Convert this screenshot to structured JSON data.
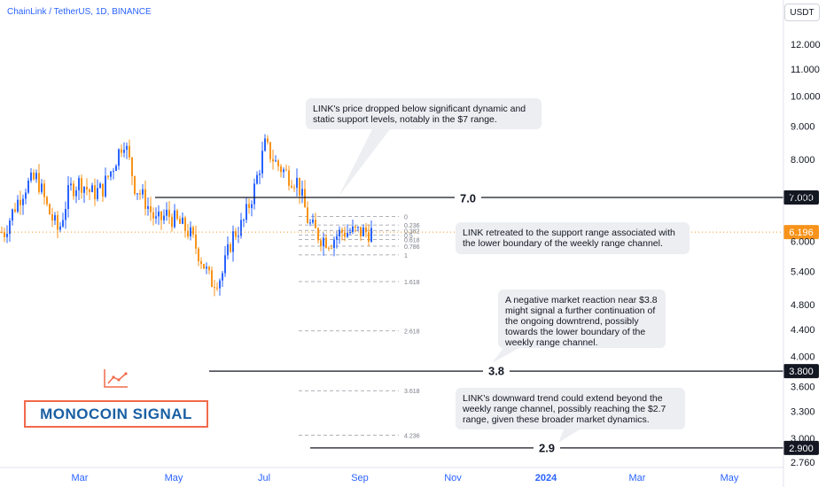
{
  "header": {
    "symbol_title": "ChainLink / TetherUS, 1D, BINANCE",
    "currency_button": "USDT"
  },
  "brand": {
    "name": "MONOCOIN SIGNAL",
    "icon": "chart-line-icon",
    "color": "#f26a4b",
    "text_color": "#1a5fa3"
  },
  "callouts": [
    {
      "id": "c1",
      "text": "LINK's price dropped below significant dynamic and static support levels, notably in the $7 range."
    },
    {
      "id": "c2",
      "text": "LINK retreated to the support range associated with the lower boundary of the weekly range channel."
    },
    {
      "id": "c3",
      "text": "A negative market reaction near $3.8 might signal a further continuation of the ongoing downtrend, possibly towards the lower boundary of the weekly range channel."
    },
    {
      "id": "c4",
      "text": "LINK's downward trend could extend beyond the weekly range channel, possibly reaching the $2.7 range, given these broader market dynamics."
    }
  ],
  "levels": [
    {
      "label": "7.0",
      "value": 7.0,
      "badge": "7.000"
    },
    {
      "label": "3.8",
      "value": 3.8,
      "badge": "3.800"
    },
    {
      "label": "2.9",
      "value": 2.9,
      "badge": "2.900"
    }
  ],
  "current_price": {
    "value": 6.196,
    "label": "6.196",
    "color": "#f7931a"
  },
  "chart_data": {
    "type": "candlestick",
    "title": "ChainLink / TetherUS, 1D, BINANCE",
    "y_axis": {
      "scale": "log",
      "ticks": [
        "12.000",
        "11.000",
        "10.000",
        "9.000",
        "8.000",
        "7.000",
        "6.000",
        "5.400",
        "4.800",
        "4.400",
        "4.000",
        "3.600",
        "3.300",
        "3.000",
        "2.760"
      ],
      "tick_values": [
        12,
        11,
        10,
        9,
        8,
        7,
        6,
        5.4,
        4.8,
        4.4,
        4.0,
        3.6,
        3.3,
        3.0,
        2.76
      ]
    },
    "x_axis": {
      "labels": [
        "Mar",
        "May",
        "Jul",
        "Sep",
        "Nov",
        "2024",
        "Mar",
        "May"
      ],
      "bold": "2024"
    },
    "colors": {
      "up": "#2962ff",
      "down": "#f7931a"
    },
    "fibonacci": {
      "levels": [
        "0",
        "0.236",
        "0.382",
        "0.5",
        "0.618",
        "0.786",
        "1",
        "1.618",
        "2.618",
        "3.618",
        "4.236"
      ],
      "price_0": 6.55,
      "price_1": 5.72
    },
    "price_path": [
      [
        "Feb 1",
        6.2
      ],
      [
        "Feb 8",
        6.8
      ],
      [
        "Feb 15",
        7.3
      ],
      [
        "Feb 22",
        7.5
      ],
      [
        "Mar 1",
        6.7
      ],
      [
        "Mar 8",
        6.2
      ],
      [
        "Mar 15",
        7.2
      ],
      [
        "Mar 22",
        7.4
      ],
      [
        "Mar 29",
        7.1
      ],
      [
        "Apr 5",
        7.2
      ],
      [
        "Apr 12",
        7.8
      ],
      [
        "Apr 19",
        8.6
      ],
      [
        "Apr 26",
        7.3
      ],
      [
        "May 3",
        6.9
      ],
      [
        "May 10",
        6.4
      ],
      [
        "May 17",
        6.6
      ],
      [
        "May 24",
        6.4
      ],
      [
        "May 31",
        6.2
      ],
      [
        "Jun 7",
        5.7
      ],
      [
        "Jun 14",
        5.2
      ],
      [
        "Jun 21",
        5.3
      ],
      [
        "Jun 28",
        6.1
      ],
      [
        "Jul 5",
        6.4
      ],
      [
        "Jul 12",
        7.2
      ],
      [
        "Jul 19",
        8.4
      ],
      [
        "Jul 26",
        7.9
      ],
      [
        "Aug 2",
        7.6
      ],
      [
        "Aug 9",
        7.4
      ],
      [
        "Aug 16",
        6.4
      ],
      [
        "Aug 23",
        6.1
      ],
      [
        "Aug 30",
        6.0
      ],
      [
        "Sep 6",
        6.2
      ]
    ]
  }
}
